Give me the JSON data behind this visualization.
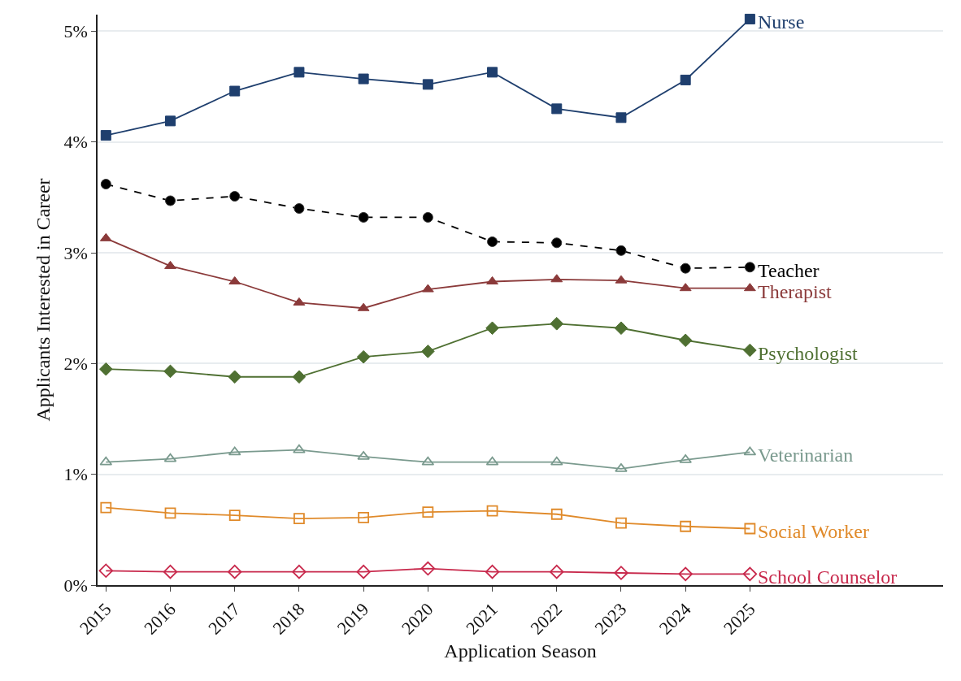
{
  "chart_data": {
    "type": "line",
    "xlabel": "Application Season",
    "ylabel": "Applicants Interested in Career",
    "x": [
      2015,
      2016,
      2017,
      2018,
      2019,
      2020,
      2021,
      2022,
      2023,
      2024,
      2025
    ],
    "xlim": [
      2014.87,
      2028
    ],
    "xticks": [
      2015,
      2016,
      2017,
      2018,
      2019,
      2020,
      2021,
      2022,
      2023,
      2024,
      2025
    ],
    "ylim": [
      0,
      5.15
    ],
    "yticks": [
      {
        "value": 0,
        "label": "0%"
      },
      {
        "value": 1,
        "label": "1%"
      },
      {
        "value": 2,
        "label": "2%"
      },
      {
        "value": 3,
        "label": "3%"
      },
      {
        "value": 4,
        "label": "4%"
      },
      {
        "value": 5,
        "label": "5%"
      }
    ],
    "grid": "y",
    "legend": false,
    "series": [
      {
        "name": "Nurse",
        "color": "#1f3f6e",
        "marker": "square",
        "line_style": "solid",
        "values": [
          4.06,
          4.19,
          4.46,
          4.63,
          4.57,
          4.52,
          4.63,
          4.3,
          4.22,
          4.56,
          5.11
        ]
      },
      {
        "name": "Teacher",
        "color": "#000000",
        "marker": "circle",
        "line_style": "dashed",
        "values": [
          3.62,
          3.47,
          3.51,
          3.4,
          3.32,
          3.32,
          3.1,
          3.09,
          3.02,
          2.86,
          2.87
        ]
      },
      {
        "name": "Therapist",
        "color": "#8b3a3a",
        "marker": "triangle",
        "line_style": "solid",
        "values": [
          3.13,
          2.88,
          2.74,
          2.55,
          2.5,
          2.67,
          2.74,
          2.76,
          2.75,
          2.68,
          2.68
        ]
      },
      {
        "name": "Psychologist",
        "color": "#4f7032",
        "marker": "diamond",
        "line_style": "solid",
        "values": [
          1.95,
          1.93,
          1.88,
          1.88,
          2.06,
          2.11,
          2.32,
          2.36,
          2.32,
          2.21,
          2.12
        ]
      },
      {
        "name": "Veterinarian",
        "color": "#7a9a8e",
        "marker": "triangle-open",
        "line_style": "solid",
        "values": [
          1.11,
          1.14,
          1.2,
          1.22,
          1.16,
          1.11,
          1.11,
          1.11,
          1.05,
          1.13,
          1.2
        ]
      },
      {
        "name": "Social Worker",
        "color": "#e08a2a",
        "marker": "square-open",
        "line_style": "solid",
        "values": [
          0.7,
          0.65,
          0.63,
          0.6,
          0.61,
          0.66,
          0.67,
          0.64,
          0.56,
          0.53,
          0.51
        ]
      },
      {
        "name": "School Counselor",
        "color": "#c8294c",
        "marker": "diamond-open",
        "line_style": "solid",
        "values": [
          0.13,
          0.12,
          0.12,
          0.12,
          0.12,
          0.15,
          0.12,
          0.12,
          0.11,
          0.1,
          0.1
        ]
      }
    ]
  }
}
